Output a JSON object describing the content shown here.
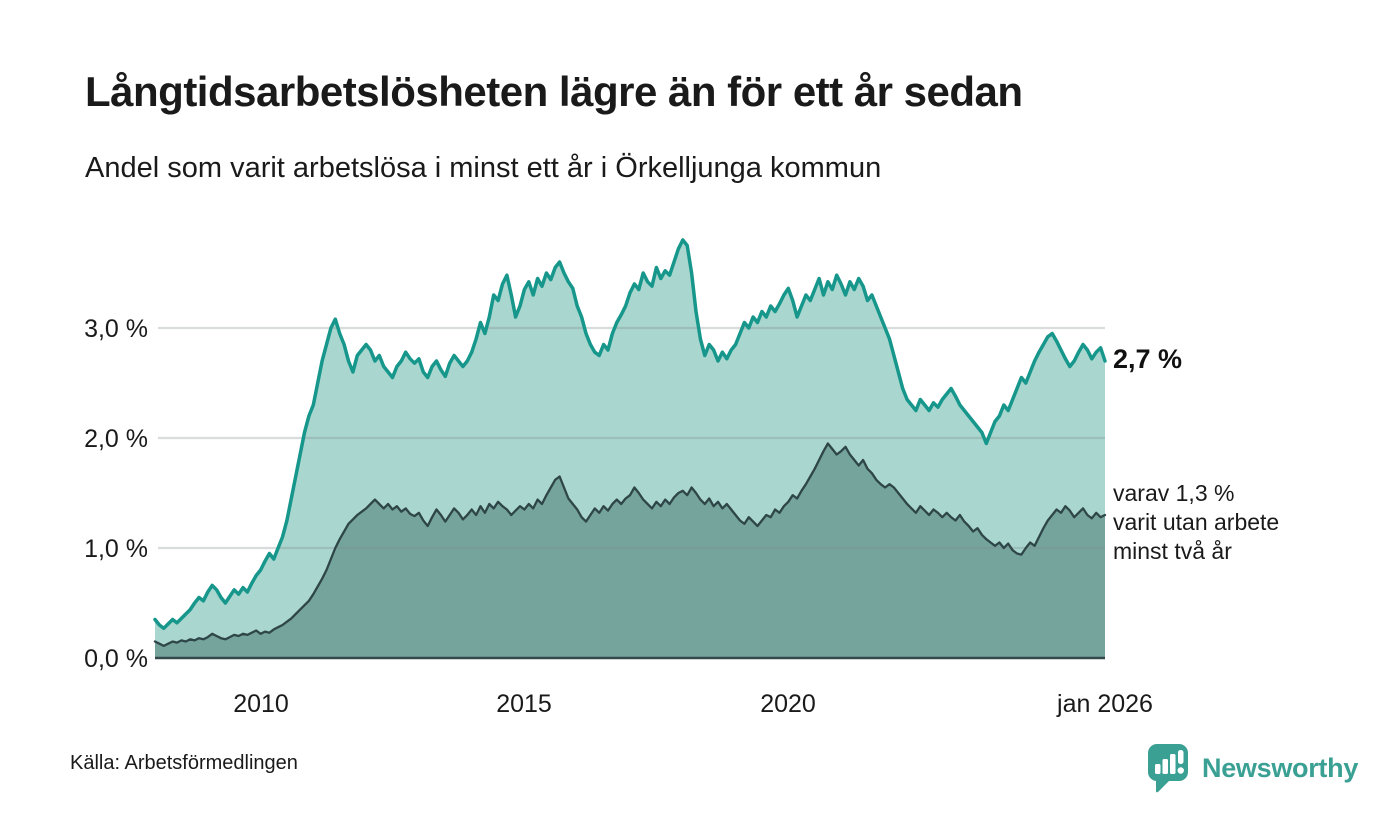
{
  "title": "Långtidsarbetslösheten lägre än för ett år sedan",
  "subtitle": "Andel som varit arbetslösa i minst ett år i Örkelljunga kommun",
  "source": "Källa: Arbetsförmedlingen",
  "logo": {
    "name": "Newsworthy",
    "icon": "newsworthy-speech-bubble-bar-chart-icon",
    "color": "#3aa094"
  },
  "annotations": {
    "latest_total": "2,7 %",
    "secondary": [
      "varav 1,3 %",
      "varit utan arbete",
      "minst två år"
    ]
  },
  "colors": {
    "total_line": "#17978b",
    "total_fill": "#a9d6cf",
    "two_year_line": "#2f4649",
    "two_year_fill": "#75a49c",
    "gridline": "rgba(128,138,140,0.30)",
    "baseline": "#35494c",
    "text": "#1a1a1a",
    "brand": "#3aa094"
  },
  "chart_data": {
    "type": "area",
    "title": "Långtidsarbetslösheten lägre än för ett år sedan",
    "subtitle": "Andel som varit arbetslösa i minst ett år i Örkelljunga kommun",
    "x_unit": "month",
    "x_start_year": 2008,
    "x_end_label": "jan 2026",
    "ylim": [
      0,
      3.9
    ],
    "grid": "horizontal",
    "x_ticks": [
      {
        "label": "2010",
        "year": 2010
      },
      {
        "label": "2015",
        "year": 2015
      },
      {
        "label": "2020",
        "year": 2020
      },
      {
        "label": "jan 2026",
        "year": 2026
      }
    ],
    "y_ticks": [
      {
        "label": "0,0 %",
        "value": 0
      },
      {
        "label": "1,0 %",
        "value": 1
      },
      {
        "label": "2,0 %",
        "value": 2
      },
      {
        "label": "3,0 %",
        "value": 3
      }
    ],
    "series": [
      {
        "name": "Arbetslösa minst ett år",
        "latest_value_label": "2,7 %",
        "line_color": "#17978b",
        "fill_color": "#a9d6cf",
        "line_width": 3.5,
        "values": [
          0.35,
          0.3,
          0.27,
          0.31,
          0.35,
          0.32,
          0.36,
          0.4,
          0.44,
          0.5,
          0.55,
          0.52,
          0.6,
          0.66,
          0.62,
          0.55,
          0.5,
          0.56,
          0.62,
          0.58,
          0.64,
          0.6,
          0.68,
          0.75,
          0.8,
          0.88,
          0.95,
          0.9,
          1.0,
          1.1,
          1.25,
          1.45,
          1.65,
          1.85,
          2.05,
          2.2,
          2.3,
          2.5,
          2.7,
          2.85,
          3.0,
          3.08,
          2.95,
          2.85,
          2.7,
          2.6,
          2.75,
          2.8,
          2.85,
          2.8,
          2.7,
          2.75,
          2.65,
          2.6,
          2.55,
          2.65,
          2.7,
          2.78,
          2.72,
          2.68,
          2.72,
          2.6,
          2.55,
          2.65,
          2.7,
          2.62,
          2.56,
          2.68,
          2.75,
          2.7,
          2.65,
          2.7,
          2.78,
          2.9,
          3.05,
          2.95,
          3.1,
          3.3,
          3.25,
          3.4,
          3.48,
          3.3,
          3.1,
          3.2,
          3.35,
          3.42,
          3.3,
          3.45,
          3.38,
          3.5,
          3.44,
          3.55,
          3.6,
          3.5,
          3.42,
          3.36,
          3.2,
          3.1,
          2.95,
          2.85,
          2.78,
          2.75,
          2.85,
          2.8,
          2.95,
          3.05,
          3.12,
          3.2,
          3.32,
          3.4,
          3.35,
          3.5,
          3.42,
          3.38,
          3.55,
          3.45,
          3.52,
          3.48,
          3.6,
          3.72,
          3.8,
          3.75,
          3.5,
          3.15,
          2.9,
          2.75,
          2.85,
          2.8,
          2.7,
          2.78,
          2.72,
          2.8,
          2.85,
          2.95,
          3.05,
          3.0,
          3.1,
          3.05,
          3.15,
          3.1,
          3.2,
          3.15,
          3.22,
          3.3,
          3.36,
          3.25,
          3.1,
          3.2,
          3.3,
          3.25,
          3.35,
          3.45,
          3.3,
          3.42,
          3.35,
          3.48,
          3.4,
          3.3,
          3.42,
          3.35,
          3.45,
          3.38,
          3.25,
          3.3,
          3.2,
          3.1,
          3.0,
          2.9,
          2.75,
          2.6,
          2.45,
          2.35,
          2.3,
          2.25,
          2.35,
          2.3,
          2.25,
          2.32,
          2.28,
          2.35,
          2.4,
          2.45,
          2.38,
          2.3,
          2.25,
          2.2,
          2.15,
          2.1,
          2.05,
          1.95,
          2.05,
          2.15,
          2.2,
          2.3,
          2.25,
          2.35,
          2.45,
          2.55,
          2.5,
          2.6,
          2.7,
          2.78,
          2.85,
          2.92,
          2.95,
          2.88,
          2.8,
          2.72,
          2.65,
          2.7,
          2.78,
          2.85,
          2.8,
          2.72,
          2.78,
          2.82,
          2.7
        ]
      },
      {
        "name": "Varav utan arbete minst två år",
        "latest_value_label": "1,3 %",
        "line_color": "#2f4649",
        "fill_color": "#75a49c",
        "line_width": 2.3,
        "values": [
          0.15,
          0.13,
          0.11,
          0.13,
          0.15,
          0.14,
          0.16,
          0.15,
          0.17,
          0.16,
          0.18,
          0.17,
          0.19,
          0.22,
          0.2,
          0.18,
          0.17,
          0.19,
          0.21,
          0.2,
          0.22,
          0.21,
          0.23,
          0.25,
          0.22,
          0.24,
          0.23,
          0.26,
          0.28,
          0.3,
          0.33,
          0.36,
          0.4,
          0.44,
          0.48,
          0.52,
          0.58,
          0.65,
          0.72,
          0.8,
          0.9,
          1.0,
          1.08,
          1.15,
          1.22,
          1.26,
          1.3,
          1.33,
          1.36,
          1.4,
          1.44,
          1.4,
          1.36,
          1.4,
          1.35,
          1.38,
          1.33,
          1.36,
          1.31,
          1.29,
          1.32,
          1.25,
          1.2,
          1.28,
          1.35,
          1.3,
          1.24,
          1.3,
          1.36,
          1.32,
          1.26,
          1.3,
          1.35,
          1.3,
          1.38,
          1.32,
          1.4,
          1.36,
          1.42,
          1.38,
          1.35,
          1.3,
          1.34,
          1.38,
          1.35,
          1.4,
          1.36,
          1.44,
          1.4,
          1.48,
          1.55,
          1.62,
          1.65,
          1.55,
          1.45,
          1.4,
          1.35,
          1.28,
          1.24,
          1.3,
          1.36,
          1.32,
          1.38,
          1.34,
          1.4,
          1.44,
          1.4,
          1.45,
          1.48,
          1.55,
          1.5,
          1.44,
          1.4,
          1.36,
          1.42,
          1.38,
          1.44,
          1.4,
          1.46,
          1.5,
          1.52,
          1.48,
          1.55,
          1.5,
          1.44,
          1.4,
          1.45,
          1.38,
          1.42,
          1.36,
          1.4,
          1.35,
          1.3,
          1.25,
          1.22,
          1.28,
          1.24,
          1.2,
          1.25,
          1.3,
          1.28,
          1.35,
          1.32,
          1.38,
          1.42,
          1.48,
          1.45,
          1.52,
          1.58,
          1.65,
          1.72,
          1.8,
          1.88,
          1.95,
          1.9,
          1.85,
          1.88,
          1.92,
          1.85,
          1.8,
          1.75,
          1.8,
          1.72,
          1.68,
          1.62,
          1.58,
          1.55,
          1.58,
          1.55,
          1.5,
          1.45,
          1.4,
          1.36,
          1.32,
          1.38,
          1.34,
          1.3,
          1.35,
          1.32,
          1.28,
          1.32,
          1.28,
          1.25,
          1.3,
          1.24,
          1.2,
          1.15,
          1.18,
          1.12,
          1.08,
          1.05,
          1.02,
          1.05,
          1.0,
          1.04,
          0.98,
          0.95,
          0.94,
          1.0,
          1.05,
          1.02,
          1.1,
          1.18,
          1.25,
          1.3,
          1.35,
          1.32,
          1.38,
          1.34,
          1.28,
          1.32,
          1.36,
          1.3,
          1.27,
          1.32,
          1.28,
          1.3
        ]
      }
    ]
  }
}
